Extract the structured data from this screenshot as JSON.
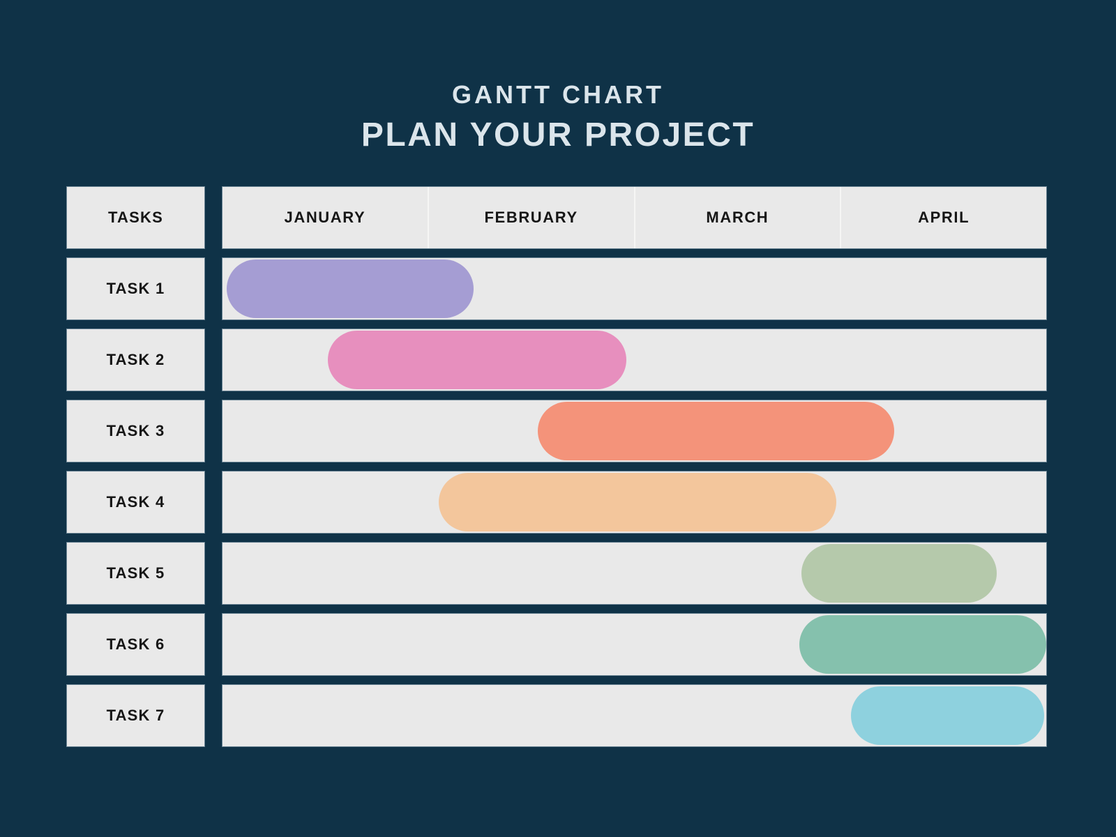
{
  "page": {
    "title": "GANTT CHART",
    "subtitle": "PLAN YOUR PROJECT",
    "background_color": "#0f3247",
    "title_color": "#dbe5eb"
  },
  "table": {
    "tasks_header": "TASKS",
    "row_background_color": "#e9e9e9",
    "label_text_color": "#161616",
    "month_divider_color": "#f6f6f5"
  },
  "chart_data": {
    "type": "bar",
    "subtype": "gantt",
    "orientation": "horizontal",
    "title": "GANTT CHART — PLAN YOUR PROJECT",
    "x_axis_unit": "months",
    "x_axis_range_months": [
      0,
      4
    ],
    "months": [
      "JANUARY",
      "FEBRUARY",
      "MARCH",
      "APRIL"
    ],
    "grid": "vertical month dividers in header band only",
    "legend_position": "none",
    "tasks": [
      {
        "label": "TASK 1",
        "start_month": 0.02,
        "end_month": 1.22,
        "color": "#a59dd3"
      },
      {
        "label": "TASK 2",
        "start_month": 0.51,
        "end_month": 1.96,
        "color": "#e78fbe"
      },
      {
        "label": "TASK 3",
        "start_month": 1.53,
        "end_month": 3.26,
        "color": "#f4937a"
      },
      {
        "label": "TASK 4",
        "start_month": 1.05,
        "end_month": 2.98,
        "color": "#f3c69c"
      },
      {
        "label": "TASK 5",
        "start_month": 2.81,
        "end_month": 3.76,
        "color": "#b5c9ab"
      },
      {
        "label": "TASK 6",
        "start_month": 2.8,
        "end_month": 4.0,
        "color": "#85c1ad"
      },
      {
        "label": "TASK 7",
        "start_month": 3.05,
        "end_month": 3.99,
        "color": "#8ed1de"
      }
    ]
  }
}
